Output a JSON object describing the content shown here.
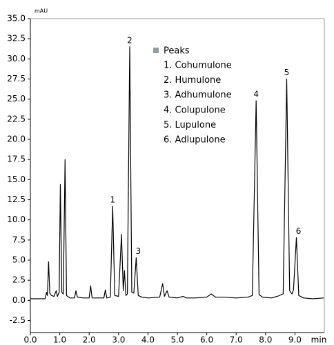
{
  "chart_data": {
    "type": "line",
    "xlabel": "min",
    "ylabel": "mAU",
    "xlim": [
      0,
      10
    ],
    "ylim": [
      -4,
      35
    ],
    "xticks": [
      {
        "value": 0,
        "label": "0.0"
      },
      {
        "value": 1,
        "label": "1.0"
      },
      {
        "value": 2,
        "label": "2.0"
      },
      {
        "value": 3,
        "label": "3.0"
      },
      {
        "value": 4,
        "label": "4.0"
      },
      {
        "value": 5,
        "label": "5.0"
      },
      {
        "value": 6,
        "label": "6.0"
      },
      {
        "value": 7,
        "label": "7.0"
      },
      {
        "value": 8,
        "label": "8.0"
      },
      {
        "value": 9,
        "label": "9.0"
      }
    ],
    "yticks": [
      -2.5,
      {
        "value": 0,
        "label": "0.0"
      },
      2.5,
      {
        "value": 5,
        "label": "5.0"
      },
      7.5,
      {
        "value": 10,
        "label": "10.0"
      },
      12.5,
      {
        "value": 15,
        "label": "15.0"
      },
      17.5,
      {
        "value": 20,
        "label": "20.0"
      },
      22.5,
      {
        "value": 25,
        "label": "25.0"
      },
      27.5,
      {
        "value": 30,
        "label": "30.0"
      },
      32.5,
      {
        "value": 35,
        "label": "35.0"
      }
    ],
    "x": [
      0.0,
      0.5,
      0.55,
      0.58,
      0.62,
      0.66,
      0.72,
      0.8,
      0.88,
      0.92,
      0.98,
      1.02,
      1.07,
      1.12,
      1.18,
      1.23,
      1.35,
      1.5,
      1.55,
      1.6,
      1.8,
      2.0,
      2.05,
      2.1,
      2.5,
      2.55,
      2.6,
      2.72,
      2.8,
      2.87,
      3.0,
      3.1,
      3.16,
      3.2,
      3.25,
      3.3,
      3.38,
      3.45,
      3.52,
      3.6,
      3.67,
      3.8,
      4.0,
      4.4,
      4.5,
      4.56,
      4.65,
      4.72,
      5.0,
      5.2,
      5.3,
      5.6,
      6.0,
      6.15,
      6.3,
      6.6,
      7.0,
      7.4,
      7.55,
      7.68,
      7.78,
      7.9,
      8.2,
      8.4,
      8.6,
      8.72,
      8.82,
      8.9,
      8.95,
      9.05,
      9.13,
      9.3,
      9.6,
      9.98
    ],
    "series": [
      {
        "color": "#000000",
        "values": [
          0.2,
          0.2,
          1.0,
          0.6,
          4.8,
          0.9,
          0.6,
          0.5,
          1.2,
          0.5,
          1.0,
          14.4,
          1.0,
          0.8,
          17.5,
          0.6,
          0.3,
          0.3,
          1.2,
          0.4,
          0.3,
          0.3,
          1.8,
          0.3,
          0.3,
          1.3,
          0.3,
          0.4,
          11.7,
          0.6,
          0.5,
          8.2,
          1.2,
          3.7,
          0.6,
          0.8,
          31.5,
          1.0,
          0.9,
          5.3,
          0.6,
          0.4,
          0.3,
          0.4,
          2.1,
          0.5,
          1.2,
          0.4,
          0.3,
          0.5,
          0.3,
          0.3,
          0.4,
          0.8,
          0.4,
          0.4,
          0.3,
          0.4,
          0.6,
          24.8,
          0.7,
          0.4,
          0.3,
          0.5,
          0.8,
          27.5,
          1.2,
          0.8,
          1.3,
          7.8,
          0.6,
          0.3,
          0.2,
          0.3
        ]
      }
    ],
    "annotations": [
      {
        "label": "1",
        "x": 2.8,
        "y": 11.7
      },
      {
        "label": "2",
        "x": 3.38,
        "y": 31.5
      },
      {
        "label": "3",
        "x": 3.6,
        "y": 5.3
      },
      {
        "label": "4",
        "x": 7.68,
        "y": 24.8
      },
      {
        "label": "5",
        "x": 8.72,
        "y": 27.5
      },
      {
        "label": "6",
        "x": 9.05,
        "y": 7.8
      }
    ],
    "legend_title": "Peaks",
    "legend_color": "#8e9ca6",
    "legend_entries": [
      "1. Cohumulone",
      "2. Humulone",
      "3. Adhumulone",
      "4. Colupulone",
      "5. Lupulone",
      "6. Adlupulone"
    ]
  }
}
